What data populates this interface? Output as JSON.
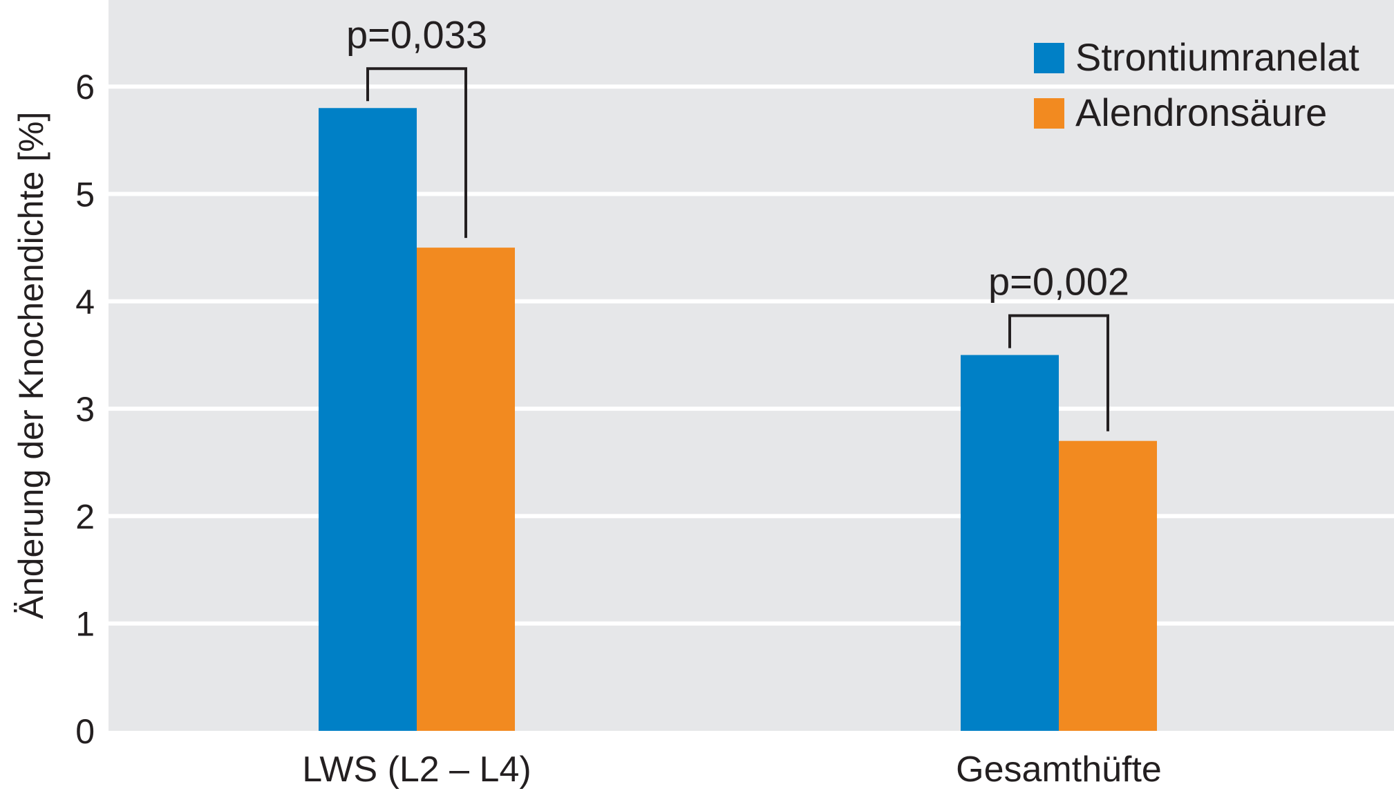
{
  "chart_data": {
    "type": "bar",
    "ylabel": "Änderung der Knochendichte [%]",
    "ylim": [
      0,
      6.5
    ],
    "yticks": [
      "0",
      "1",
      "2",
      "3",
      "4",
      "5",
      "6"
    ],
    "grid": true,
    "legend_position": "top-right",
    "categories": [
      "LWS (L2 – L4)",
      "Gesamthüfte"
    ],
    "series": [
      {
        "name": "Strontiumranelat",
        "color": "#0080c6",
        "values": [
          5.8,
          3.5
        ]
      },
      {
        "name": "Alendronsäure",
        "color": "#f28a20",
        "values": [
          4.5,
          2.7
        ]
      }
    ],
    "annotations": [
      {
        "category_index": 0,
        "text": "p=0,033"
      },
      {
        "category_index": 1,
        "text": "p=0,002"
      }
    ],
    "colors": {
      "plot_background": "#e6e7e9",
      "grid": "#ffffff",
      "text": "#231f20"
    }
  }
}
